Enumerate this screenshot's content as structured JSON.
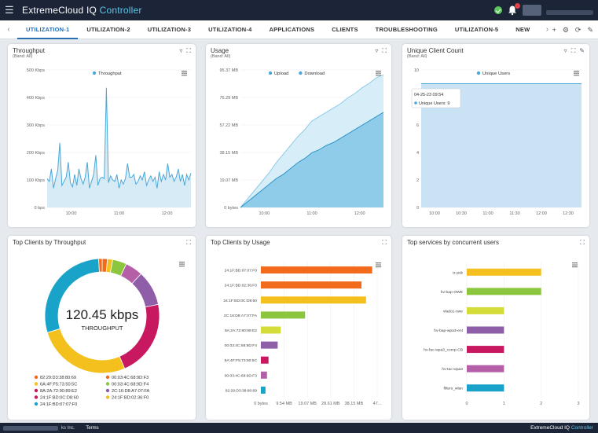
{
  "app": {
    "brand": "ExtremeCloud IQ",
    "brand_accent": "Controller"
  },
  "tabs": [
    "UTILIZATION-1",
    "UTILIZATION-2",
    "UTILIZATION-3",
    "UTILIZATION-4",
    "APPLICATIONS",
    "CLIENTS",
    "TROUBLESHOOTING",
    "UTILIZATION-5",
    "NEW"
  ],
  "active_tab": "UTILIZATION-1",
  "cards": {
    "throughput": {
      "title": "Throughput",
      "subtitle": "(Band: All)"
    },
    "usage": {
      "title": "Usage",
      "subtitle": "(Band: All)"
    },
    "unique": {
      "title": "Unique Client Count",
      "subtitle": "(Band: All)"
    },
    "top_tp": {
      "title": "Top Clients by Throughput"
    },
    "top_usage": {
      "title": "Top Clients by Usage"
    },
    "top_services": {
      "title": "Top services by concurrent users"
    }
  },
  "footer": {
    "copyright": "ks Inc.",
    "terms": "Terms",
    "brand": "ExtremeCloud IQ",
    "brand_accent": "Controller"
  },
  "colors": {
    "blue": "#4aa8d8",
    "blue_fill": "#cfe7f5",
    "orange": "#f26b1d",
    "yellow": "#f4c01e",
    "green": "#8cc63f",
    "purple": "#8e5ea8",
    "magenta": "#c8185f",
    "teal": "#1aa3c9"
  },
  "chart_data": [
    {
      "type": "area",
      "title": "Throughput",
      "legend": [
        "Throughput"
      ],
      "y_ticks": [
        "500 Kbps",
        "400 Kbps",
        "300 Kbps",
        "200 Kbps",
        "100 Kbps",
        "0 bps"
      ],
      "x_ticks": [
        "10:00",
        "11:00",
        "12:00"
      ],
      "ylim": [
        0,
        500
      ],
      "y_unit": "Kbps",
      "series": [
        {
          "name": "Throughput",
          "values": [
            105,
            95,
            140,
            70,
            105,
            135,
            235,
            80,
            95,
            110,
            165,
            90,
            75,
            120,
            80,
            140,
            105,
            85,
            110,
            165,
            70,
            95,
            120,
            190,
            80,
            105,
            110,
            105,
            435,
            90,
            115,
            100,
            95,
            120,
            70,
            100,
            85,
            105,
            160,
            110,
            110,
            120,
            85,
            95,
            115,
            100,
            130,
            80,
            100,
            115,
            95,
            110,
            70,
            130,
            95,
            120,
            100,
            160,
            110,
            120,
            95,
            110,
            140,
            95,
            120,
            80,
            120,
            100,
            125
          ]
        }
      ]
    },
    {
      "type": "area",
      "title": "Usage",
      "legend": [
        "Upload",
        "Download"
      ],
      "y_ticks": [
        "95.37 MB",
        "76.29 MB",
        "57.22 MB",
        "38.15 MB",
        "19.07 MB",
        "0 bytes"
      ],
      "x_ticks": [
        "10:00",
        "11:00",
        "12:00"
      ],
      "ylim": [
        0,
        95.37
      ],
      "y_unit": "MB",
      "series": [
        {
          "name": "Download",
          "values": [
            0,
            6,
            12,
            18,
            24,
            31,
            37,
            43,
            49,
            54,
            60,
            63,
            66,
            69,
            72,
            76,
            79,
            83,
            86,
            90,
            92
          ]
        },
        {
          "name": "Upload",
          "values": [
            0,
            4,
            8,
            12,
            16,
            20,
            23,
            27,
            31,
            34,
            38,
            40,
            43,
            45,
            48,
            51,
            54,
            57,
            60,
            63,
            66
          ]
        }
      ]
    },
    {
      "type": "area",
      "title": "Unique Client Count",
      "legend": [
        "Unique Users"
      ],
      "y_ticks": [
        "10",
        "8",
        "6",
        "4",
        "2",
        "0"
      ],
      "x_ticks": [
        "10:00",
        "10:30",
        "11:00",
        "11:30",
        "12:00",
        "12:30"
      ],
      "ylim": [
        0,
        10
      ],
      "tooltip": {
        "time": "04-25-23 09:54",
        "label": "Unique Users:",
        "value": "9"
      },
      "series": [
        {
          "name": "Unique Users",
          "values": [
            9,
            9,
            9,
            9,
            9,
            9,
            9,
            9,
            9,
            9,
            9,
            9,
            9,
            9,
            9,
            9,
            9,
            9,
            9,
            9,
            9,
            9,
            9,
            9,
            9
          ]
        }
      ]
    },
    {
      "type": "pie",
      "title": "Top Clients by Throughput",
      "center_value": "120.45 kbps",
      "center_label": "THROUGHPUT",
      "series": [
        {
          "name": "82:29:D3:38:80:69",
          "value": 1.5,
          "color": "#f26b1d"
        },
        {
          "name": "00:03:4C:68:9D:F3",
          "value": 1.5,
          "color": "#f4c01e"
        },
        {
          "name": "6A:4F:F5:73:50:5C",
          "value": 4,
          "color": "#8cc63f"
        },
        {
          "name": "00:03:4C:68:9D:F4",
          "value": 5,
          "color": "#b45fa8"
        },
        {
          "name": "8A:2A:72:90:89:E2",
          "value": 10,
          "color": "#8e5ea8"
        },
        {
          "name": "2C:16:D8:A7:07:FA",
          "value": 22,
          "color": "#c8185f"
        },
        {
          "name": "24:1F:BD:0C:D8:60",
          "value": 27,
          "color": "#f4c01e"
        },
        {
          "name": "24:1F:BD:02:36:F0",
          "value": 29,
          "color": "#1aa3c9"
        },
        {
          "name": "24:1F:BD:07:07:F0",
          "value": 1,
          "color": "#f26b1d"
        }
      ],
      "legend": [
        {
          "name": "82:29:D3:38:80:69",
          "color": "#f26b1d"
        },
        {
          "name": "00:03:4C:68:9D:F3",
          "color": "#f26b1d"
        },
        {
          "name": "6A:4F:F5:73:50:5C",
          "color": "#f4c01e"
        },
        {
          "name": "00:03:4C:68:9D:F4",
          "color": "#8cc63f"
        },
        {
          "name": "8A:2A:72:90:89:E2",
          "color": "#c8185f"
        },
        {
          "name": "2C:16:D8:A7:07:FA",
          "color": "#8e5ea8"
        },
        {
          "name": "24:1F:BD:0C:D8:60",
          "color": "#c8185f"
        },
        {
          "name": "24:1F:BD:02:36:F0",
          "color": "#f4c01e"
        },
        {
          "name": "24:1F:BD:07:07:F0",
          "color": "#1aa3c9"
        }
      ]
    },
    {
      "type": "bar",
      "orientation": "horizontal",
      "title": "Top Clients by Usage",
      "categories": [
        "24:1F:BD:07:07:F0",
        "24:1F:BD:02:36:F0",
        "24:1F:BD:0C:D8:60",
        "2C:16:D8:A7:07:FA",
        "8A:2A:72:90:89:E2",
        "00:03:4C:68:9D:F4",
        "6A:4F:F5:73:50:5C",
        "00:03:4C:68:9D:F3",
        "82:29:D3:38:80:69"
      ],
      "values": [
        73.0,
        66.0,
        69.0,
        29.0,
        13.0,
        11.0,
        5.0,
        4.0,
        3.0
      ],
      "colors": [
        "#f26b1d",
        "#f26b1d",
        "#f4c01e",
        "#8cc63f",
        "#d4dc3a",
        "#8e5ea8",
        "#c8185f",
        "#b45fa8",
        "#1aa3c9"
      ],
      "x_ticks": [
        "0 bytes",
        "9.54 MB",
        "19.07 MB",
        "28.61 MB",
        "38.15 MB",
        "47..."
      ],
      "xlim": [
        0,
        76.3
      ]
    },
    {
      "type": "bar",
      "orientation": "horizontal",
      "title": "Top services by concurrent users",
      "categories": [
        "iz-psk",
        "hv-bap-OWE",
        "vlado1-owe",
        "hv-bap-wpa3-ent",
        "hv-fac-wpa3_comp-CB",
        "hv-tac-wpa3",
        "filters_wlan"
      ],
      "values": [
        2,
        2,
        1,
        1,
        1,
        1,
        1
      ],
      "colors": [
        "#f4c01e",
        "#8cc63f",
        "#d4dc3a",
        "#8e5ea8",
        "#c8185f",
        "#b45fa8",
        "#1aa3c9"
      ],
      "x_ticks": [
        "0",
        "1",
        "2",
        "3"
      ],
      "xlim": [
        0,
        3
      ]
    }
  ]
}
